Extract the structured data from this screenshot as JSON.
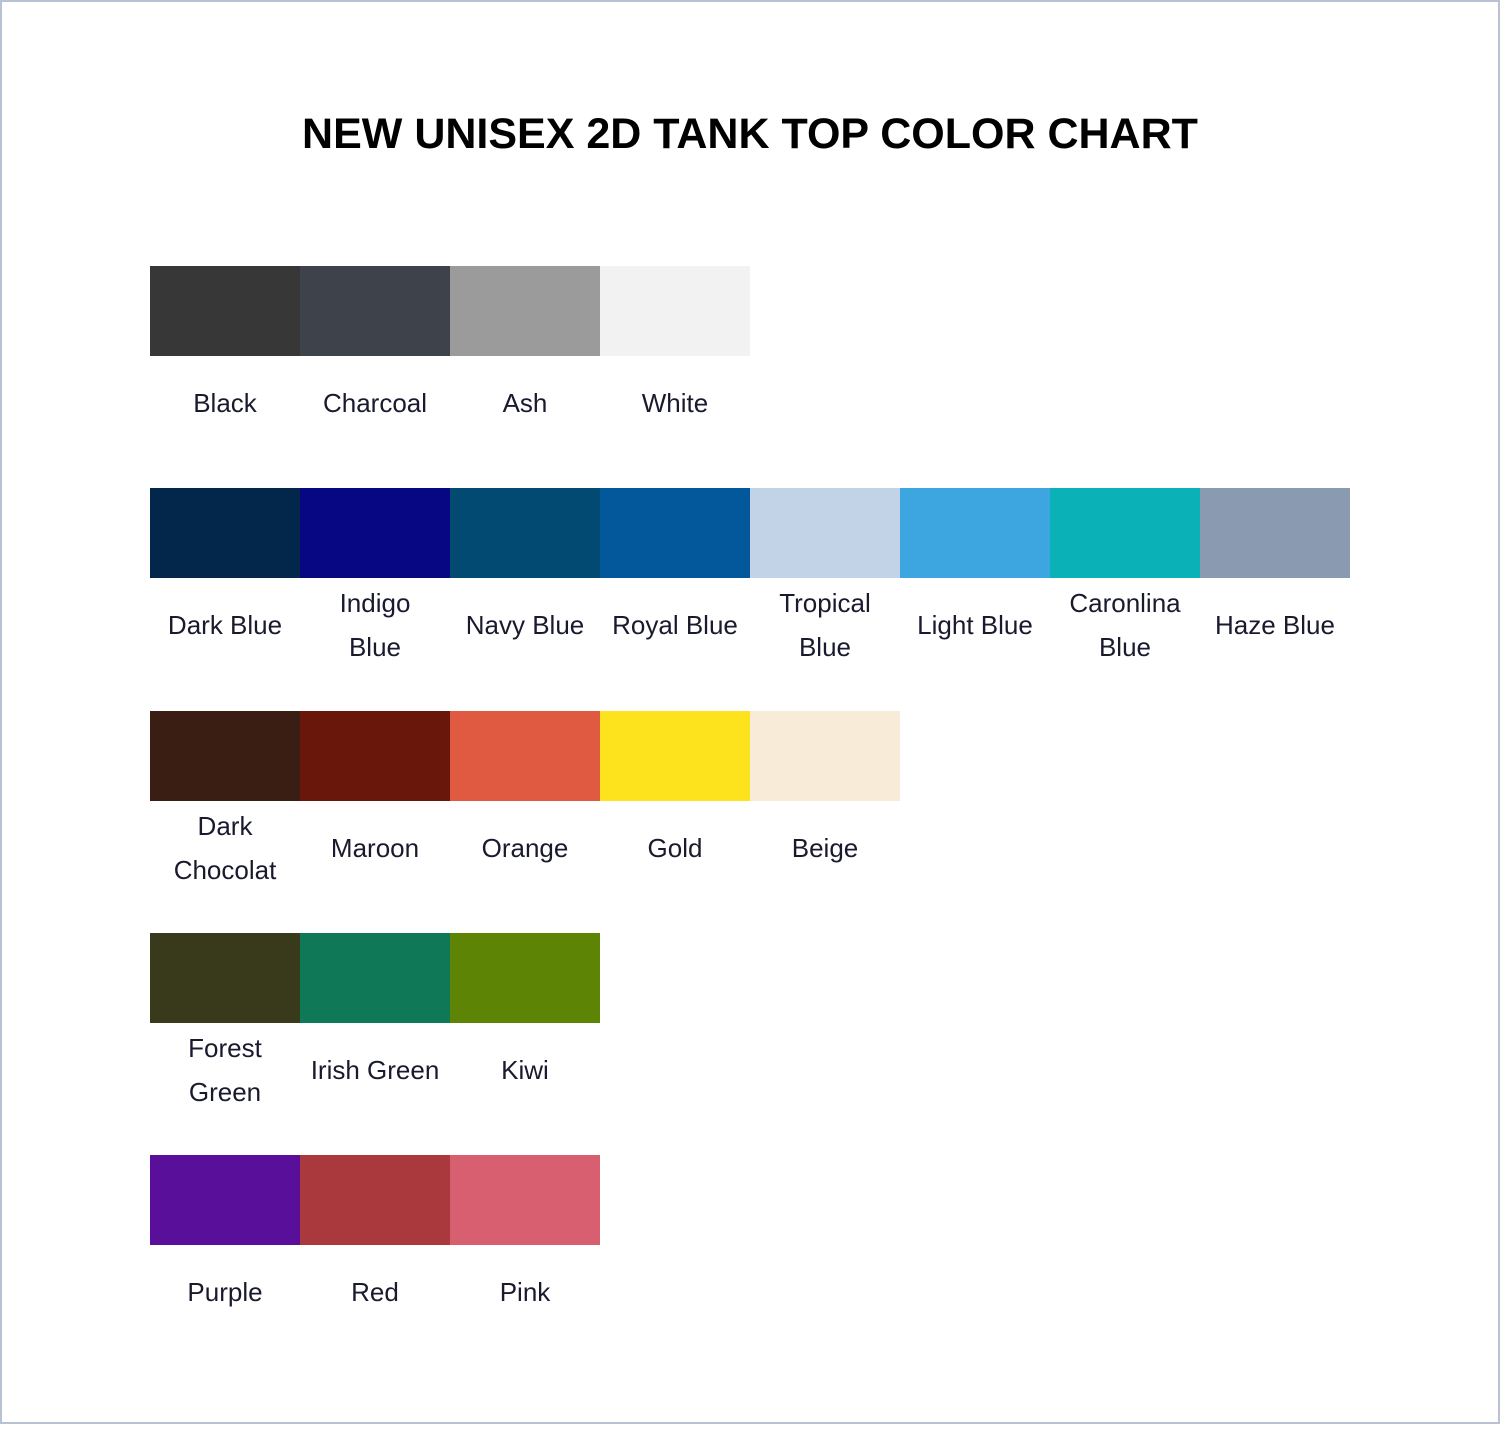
{
  "title": "NEW UNISEX 2D TANK TOP COLOR CHART",
  "rows": [
    [
      {
        "name": "Black",
        "color": "#373737"
      },
      {
        "name": "Charcoal",
        "color": "#3e434b"
      },
      {
        "name": "Ash",
        "color": "#9b9b9b"
      },
      {
        "name": "White",
        "color": "#f2f2f2"
      }
    ],
    [
      {
        "name": "Dark Blue",
        "color": "#02274a"
      },
      {
        "name": "Indigo Blue",
        "color": "#070683"
      },
      {
        "name": "Navy Blue",
        "color": "#034a73"
      },
      {
        "name": "Royal Blue",
        "color": "#03589c"
      },
      {
        "name": "Tropical Blue",
        "color": "#c2d3e8"
      },
      {
        "name": "Light Blue",
        "color": "#3da5e0"
      },
      {
        "name": "Caronlina Blue",
        "color": "#0ab2b8"
      },
      {
        "name": "Haze Blue",
        "color": "#8a9ab0"
      }
    ],
    [
      {
        "name": "Dark Chocolat",
        "color": "#3a1d13"
      },
      {
        "name": "Maroon",
        "color": "#6a170b"
      },
      {
        "name": "Orange",
        "color": "#e05a42"
      },
      {
        "name": "Gold",
        "color": "#fde21e"
      },
      {
        "name": "Beige",
        "color": "#f8ebd8"
      }
    ],
    [
      {
        "name": "Forest Green",
        "color": "#39391b"
      },
      {
        "name": "Irish Green",
        "color": "#0f7957"
      },
      {
        "name": "Kiwi",
        "color": "#5d8404"
      }
    ],
    [
      {
        "name": "Purple",
        "color": "#590f99"
      },
      {
        "name": "Red",
        "color": "#a9393c"
      },
      {
        "name": "Pink",
        "color": "#d85f6f"
      }
    ]
  ]
}
